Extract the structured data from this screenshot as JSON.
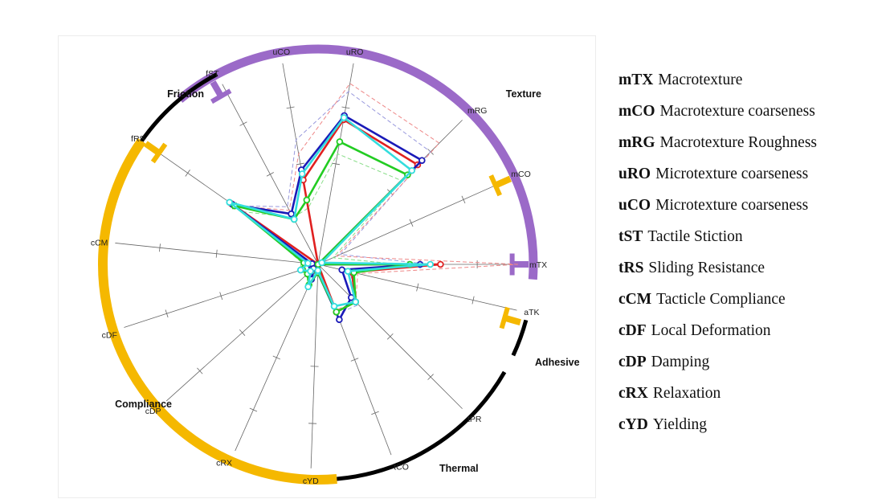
{
  "chart_data": {
    "type": "radar",
    "axes": [
      "mTX",
      "mCO",
      "mRG",
      "uRO",
      "uCO",
      "fST",
      "fRS",
      "cCM",
      "cDF",
      "cDP",
      "cRX",
      "cYD",
      "tCO",
      "tPR",
      "aTK"
    ],
    "axis_angles_deg": [
      0,
      24,
      45,
      80,
      100,
      118,
      145,
      174,
      198,
      222,
      246,
      268,
      291,
      315,
      347
    ],
    "rlim": [
      0,
      1
    ],
    "groups": [
      {
        "label": "Texture",
        "color": "#9b6ac8",
        "from_deg": -4,
        "to_deg": 130,
        "bracket_ends": [
          "mTX",
          "mCO",
          "fST"
        ]
      },
      {
        "label": "Friction",
        "color": "#000000",
        "from_deg": 118,
        "to_deg": 145
      },
      {
        "label": "Compliance",
        "color": "#f5b800",
        "from_deg": 145,
        "to_deg": 275,
        "bracket_ends": [
          "fRS",
          "aTK"
        ]
      },
      {
        "label": "Thermal",
        "color": "#000000",
        "from_deg": 275,
        "to_deg": 330
      },
      {
        "label": "Adhesive",
        "color": "#000000",
        "from_deg": 335,
        "to_deg": 345
      }
    ],
    "series": [
      {
        "color": "#e02020",
        "values": [
          0.6,
          0.0,
          0.69,
          0.72,
          0.42,
          0.0,
          0.52,
          0.0,
          0.03,
          0.07,
          0.02,
          0.0,
          0.25,
          0.26,
          0.17
        ]
      },
      {
        "color": "#1a1ab8",
        "values": [
          0.5,
          0.0,
          0.72,
          0.74,
          0.47,
          0.28,
          0.51,
          0.03,
          0.06,
          0.03,
          0.08,
          0.04,
          0.29,
          0.23,
          0.12
        ]
      },
      {
        "color": "#22cc22",
        "values": [
          0.45,
          0.0,
          0.62,
          0.61,
          0.32,
          0.25,
          0.5,
          0.07,
          0.08,
          0.07,
          0.11,
          0.04,
          0.25,
          0.26,
          0.18
        ]
      },
      {
        "color": "#33dddd",
        "values": [
          0.55,
          0.02,
          0.65,
          0.73,
          0.45,
          0.25,
          0.53,
          0.05,
          0.09,
          0.05,
          0.12,
          0.03,
          0.22,
          0.26,
          0.15
        ]
      }
    ],
    "dashed_series": [
      {
        "color": "#9999dd",
        "values": [
          0.55,
          0.12,
          0.78,
          0.86,
          0.62,
          0.32,
          0.5,
          0.05,
          0.1,
          0.05,
          0.1,
          0.04,
          0.26,
          0.28,
          0.16
        ]
      },
      {
        "color": "#ee8888",
        "values": [
          0.98,
          0.1,
          0.84,
          0.9,
          0.55,
          0.3,
          0.5,
          0.04,
          0.06,
          0.05,
          0.04,
          0.02,
          0.24,
          0.26,
          0.2
        ]
      },
      {
        "color": "#88dd88",
        "values": [
          0.4,
          0.08,
          0.58,
          0.55,
          0.28,
          0.26,
          0.45,
          0.08,
          0.1,
          0.08,
          0.11,
          0.05,
          0.25,
          0.25,
          0.18
        ]
      }
    ]
  },
  "legend": [
    {
      "code": "mTX",
      "desc": "Macrotexture"
    },
    {
      "code": "mCO",
      "desc": "Macrotexture coarseness"
    },
    {
      "code": "mRG",
      "desc": "Macrotexture Roughness"
    },
    {
      "code": "uRO",
      "desc": "Microtexture coarseness"
    },
    {
      "code": "uCO",
      "desc": "Microtexture coarseness"
    },
    {
      "code": "tST",
      "desc": "Tactile Stiction"
    },
    {
      "code": "tRS",
      "desc": "Sliding Resistance"
    },
    {
      "code": "cCM",
      "desc": "Tacticle Compliance"
    },
    {
      "code": "cDF",
      "desc": "Local Deformation"
    },
    {
      "code": "cDP",
      "desc": "Damping"
    },
    {
      "code": "cRX",
      "desc": "Relaxation"
    },
    {
      "code": "cYD",
      "desc": "Yielding"
    }
  ]
}
